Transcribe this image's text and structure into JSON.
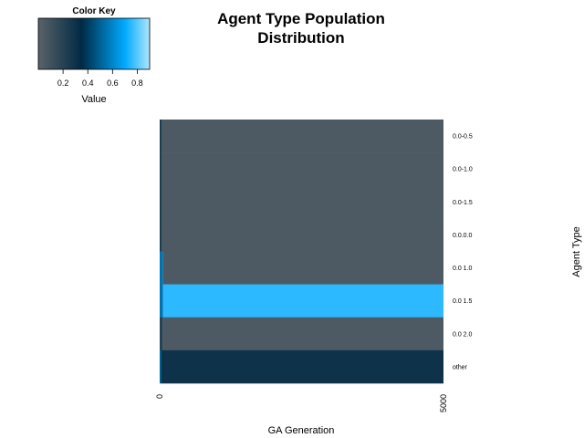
{
  "chart_data": {
    "type": "heatmap",
    "title_lines": [
      "Agent Type Population",
      "Distribution"
    ],
    "xlabel": "GA Generation",
    "ylabel": "Agent Type",
    "x_ticks": [
      "0",
      "5000"
    ],
    "xlim": [
      0,
      5000
    ],
    "rows": [
      {
        "label": "0.0-0.5",
        "segments": [
          {
            "from": 0,
            "to": 30,
            "value": 0.25
          },
          {
            "from": 30,
            "to": 5000,
            "value": 0.05
          }
        ]
      },
      {
        "label": "0.0-1.0",
        "segments": [
          {
            "from": 0,
            "to": 30,
            "value": 0.25
          },
          {
            "from": 30,
            "to": 5000,
            "value": 0.05
          }
        ]
      },
      {
        "label": "0.0-1.5",
        "segments": [
          {
            "from": 0,
            "to": 30,
            "value": 0.25
          },
          {
            "from": 30,
            "to": 5000,
            "value": 0.05
          }
        ]
      },
      {
        "label": "0.0.0.0",
        "segments": [
          {
            "from": 0,
            "to": 30,
            "value": 0.25
          },
          {
            "from": 30,
            "to": 5000,
            "value": 0.05
          }
        ]
      },
      {
        "label": "0.0 1.0",
        "segments": [
          {
            "from": 0,
            "to": 60,
            "value": 0.55
          },
          {
            "from": 60,
            "to": 5000,
            "value": 0.05
          }
        ]
      },
      {
        "label": "0.0 1.5",
        "segments": [
          {
            "from": 0,
            "to": 60,
            "value": 0.55
          },
          {
            "from": 60,
            "to": 5000,
            "value": 0.75
          }
        ]
      },
      {
        "label": "0.0 2.0",
        "segments": [
          {
            "from": 0,
            "to": 60,
            "value": 0.2
          },
          {
            "from": 60,
            "to": 5000,
            "value": 0.05
          }
        ]
      },
      {
        "label": "other",
        "segments": [
          {
            "from": 0,
            "to": 30,
            "value": 0.5
          },
          {
            "from": 30,
            "to": 5000,
            "value": 0.3
          }
        ]
      }
    ],
    "color_key": {
      "title": "Color Key",
      "label": "Value",
      "range": [
        0,
        0.9
      ],
      "ticks": [
        0.2,
        0.4,
        0.6,
        0.8
      ],
      "tick_labels": [
        "0.2",
        "0.4",
        "0.6",
        "0.8"
      ],
      "stops": [
        {
          "value": 0.0,
          "color": "#5a6268"
        },
        {
          "value": 0.35,
          "color": "#002a45"
        },
        {
          "value": 0.7,
          "color": "#00aaff"
        },
        {
          "value": 0.9,
          "color": "#aee6ff"
        }
      ]
    }
  }
}
